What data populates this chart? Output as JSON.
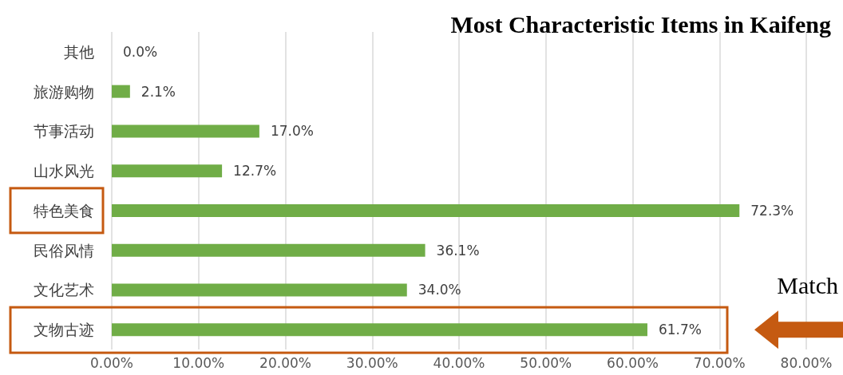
{
  "chart_data": {
    "type": "bar",
    "orientation": "horizontal",
    "title": "Most Characteristic Items in Kaifeng",
    "categories": [
      "其他",
      "旅游购物",
      "节事活动",
      "山水风光",
      "特色美食",
      "民俗风情",
      "文化艺术",
      "文物古迹"
    ],
    "values": [
      0.0,
      2.1,
      17.0,
      12.7,
      72.3,
      36.1,
      34.0,
      61.7
    ],
    "value_labels": [
      "0.0%",
      "2.1%",
      "17.0%",
      "12.7%",
      "72.3%",
      "36.1%",
      "34.0%",
      "61.7%"
    ],
    "color": "#70ad47",
    "xlim": [
      0,
      80
    ],
    "xticks": [
      {
        "value": 0,
        "label": "0.00%"
      },
      {
        "value": 10,
        "label": "10.00%"
      },
      {
        "value": 20,
        "label": "20.00%"
      },
      {
        "value": 30,
        "label": "30.00%"
      },
      {
        "value": 40,
        "label": "40.00%"
      },
      {
        "value": 50,
        "label": "50.00%"
      },
      {
        "value": 60,
        "label": "60.00%"
      },
      {
        "value": 70,
        "label": "70.00%"
      },
      {
        "value": 80,
        "label": "80.00%"
      }
    ],
    "grid": "x",
    "annotations": [
      "Match"
    ]
  }
}
